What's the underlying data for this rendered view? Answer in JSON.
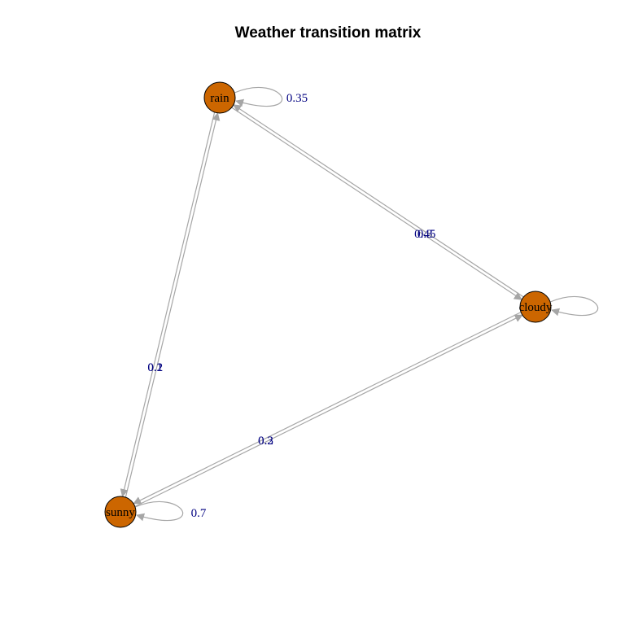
{
  "title": "Weather transition matrix",
  "colors": {
    "node_fill": "#cc6600",
    "node_stroke": "#000000",
    "edge": "#a6a6a6",
    "edge_label": "#000080"
  },
  "nodes": [
    {
      "id": "rain",
      "label": "rain"
    },
    {
      "id": "cloudy",
      "label": "cloudy"
    },
    {
      "id": "sunny",
      "label": "sunny"
    }
  ],
  "edges": [
    {
      "from": "rain",
      "to": "rain",
      "label": "0.35"
    },
    {
      "from": "rain",
      "to": "cloudy",
      "label": "0.3"
    },
    {
      "from": "cloudy",
      "to": "rain",
      "label": "0.45"
    },
    {
      "from": "rain",
      "to": "sunny",
      "label": "0.1"
    },
    {
      "from": "sunny",
      "to": "rain",
      "label": "0.2"
    },
    {
      "from": "cloudy",
      "to": "cloudy",
      "label": ""
    },
    {
      "from": "cloudy",
      "to": "sunny",
      "label": "0.2"
    },
    {
      "from": "sunny",
      "to": "cloudy",
      "label": "0.3"
    },
    {
      "from": "sunny",
      "to": "sunny",
      "label": "0.7"
    }
  ]
}
